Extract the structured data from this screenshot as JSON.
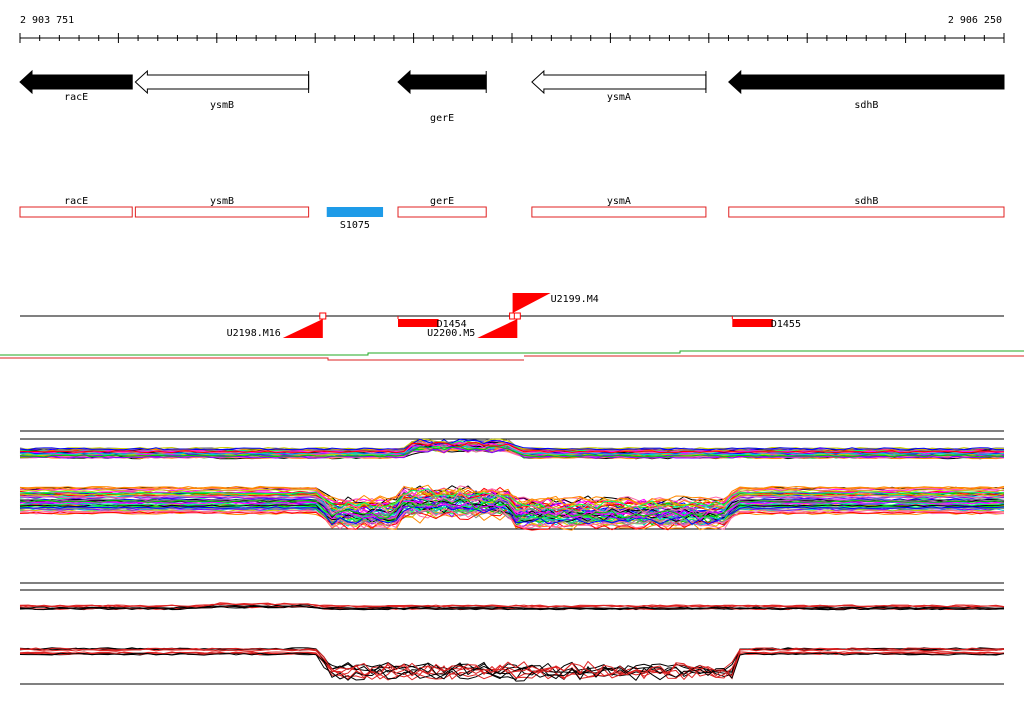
{
  "coordinates": {
    "start_label": "2 903 751",
    "end_label": "2 906 250",
    "start": 2903751,
    "end": 2906250
  },
  "genes": [
    {
      "name": "racE",
      "start": 2903751,
      "end": 2904036,
      "strand": "-",
      "style": "filled"
    },
    {
      "name": "ysmB",
      "start": 2904044,
      "end": 2904484,
      "strand": "-",
      "style": "open"
    },
    {
      "name": "gerE",
      "start": 2904711,
      "end": 2904935,
      "strand": "-",
      "style": "filled"
    },
    {
      "name": "ysmA",
      "start": 2905051,
      "end": 2905493,
      "strand": "-",
      "style": "open"
    },
    {
      "name": "sdhB",
      "start": 2905551,
      "end": 2906250,
      "strand": "-",
      "style": "filled"
    }
  ],
  "annotation_boxes": [
    {
      "name": "racE",
      "start": 2903751,
      "end": 2904036
    },
    {
      "name": "ysmB",
      "start": 2904044,
      "end": 2904484
    },
    {
      "name": "gerE",
      "start": 2904711,
      "end": 2904935
    },
    {
      "name": "ysmA",
      "start": 2905051,
      "end": 2905493
    },
    {
      "name": "sdhB",
      "start": 2905551,
      "end": 2906250
    }
  ],
  "features": [
    {
      "name": "S1075",
      "start": 2904530,
      "end": 2904673,
      "color": "#1e9be8"
    }
  ],
  "markers": [
    {
      "name": "U2198.M16",
      "position": 2904520,
      "side": "below",
      "direction": "left"
    },
    {
      "name": "U2199.M4",
      "position": 2905002,
      "side": "above",
      "direction": "right"
    },
    {
      "name": "U2200.M5",
      "position": 2905014,
      "side": "below",
      "direction": "left"
    },
    {
      "name": "D1454",
      "start": 2904711,
      "end": 2904814,
      "side": "below"
    },
    {
      "name": "D1455",
      "start": 2905560,
      "end": 2905663,
      "side": "below"
    }
  ],
  "colors": {
    "gene_fill": "#000000",
    "box_stroke": "#e02020",
    "marker": "#ff0000",
    "axis": "#000000",
    "coverage_green": "#22aa22",
    "coverage_red": "#dd2222"
  }
}
